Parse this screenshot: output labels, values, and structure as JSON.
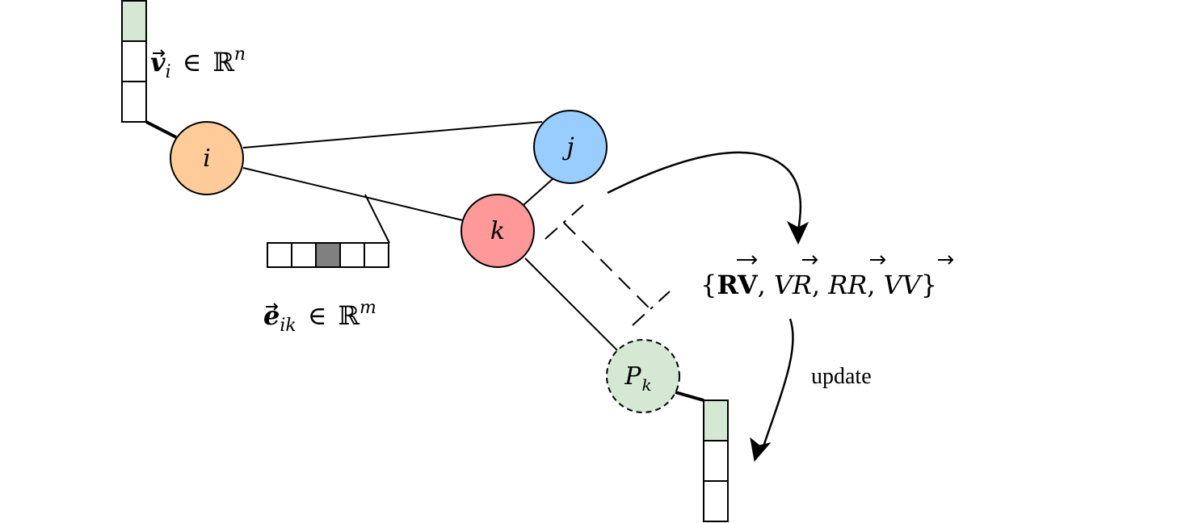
{
  "colors": {
    "node_i": "#ffcc99",
    "node_j": "#99ccff",
    "node_k": "#ff9999",
    "node_pk": "#d5e8d4",
    "vector_highlight": "#d5e8d4",
    "edge_highlight": "#808080",
    "stroke": "#000000"
  },
  "nodes": {
    "i": {
      "label": "i"
    },
    "j": {
      "label": "j"
    },
    "k": {
      "label": "k"
    },
    "pk": {
      "label": "P",
      "subscript": "k"
    }
  },
  "node_vector": {
    "symbol": "v",
    "subscript": "i",
    "relation": "∈",
    "space": "ℝ",
    "superscript": "n"
  },
  "edge_vector": {
    "symbol": "e",
    "subscript": "ik",
    "relation": "∈",
    "space": "ℝ",
    "superscript": "m"
  },
  "relation_set": {
    "open": "{",
    "items": [
      "RV",
      "VR",
      "RR",
      "VV"
    ],
    "separator": ",",
    "close": "}"
  },
  "update_label": "update"
}
